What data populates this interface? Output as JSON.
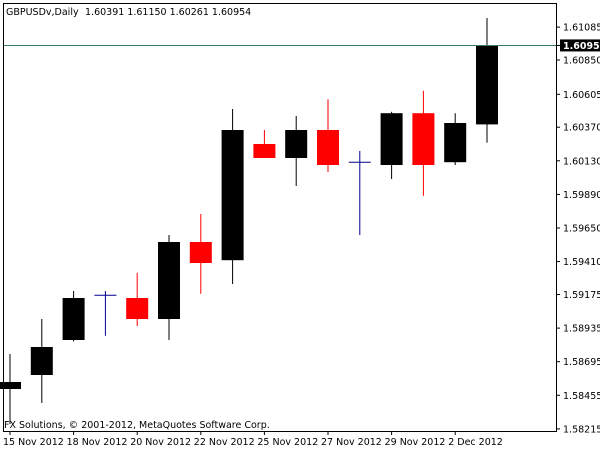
{
  "header": {
    "symbol_timeframe": "GBPUSDv,Daily",
    "ohlc": "1.60391 1.61150 1.60261 1.60954"
  },
  "footer": {
    "copyright": "FX Solutions, © 2001-2012, MetaQuotes Software Corp."
  },
  "chart_data": {
    "type": "candlestick",
    "symbol": "GBPUSDv",
    "timeframe": "Daily",
    "last_price": "1.60954",
    "ylim": [
      1.582,
      1.6125
    ],
    "y_ticks": [
      "1.61085",
      "1.60954",
      "1.60850",
      "1.60605",
      "1.60370",
      "1.60130",
      "1.59890",
      "1.59650",
      "1.59410",
      "1.59175",
      "1.58935",
      "1.58695",
      "1.58455",
      "1.58215"
    ],
    "x_tick_labels": [
      "15 Nov 2012",
      "18 Nov 2012",
      "20 Nov 2012",
      "22 Nov 2012",
      "25 Nov 2012",
      "27 Nov 2012",
      "29 Nov 2012",
      "2 Dec 2012"
    ],
    "colors": {
      "bull": "#000000",
      "bear": "#ff0000",
      "doji": "#00008b",
      "last_price_line": "#3a7a6e"
    },
    "candles": [
      {
        "open": 1.585,
        "high": 1.5875,
        "low": 1.5825,
        "close": 1.5855
      },
      {
        "open": 1.586,
        "high": 1.59,
        "low": 1.584,
        "close": 1.588
      },
      {
        "open": 1.5885,
        "high": 1.592,
        "low": 1.5884,
        "close": 1.5915
      },
      {
        "open": 1.5917,
        "high": 1.592,
        "low": 1.5888,
        "close": 1.5916
      },
      {
        "open": 1.5915,
        "high": 1.5933,
        "low": 1.5895,
        "close": 1.59
      },
      {
        "open": 1.59,
        "high": 1.596,
        "low": 1.5885,
        "close": 1.5955
      },
      {
        "open": 1.5955,
        "high": 1.5975,
        "low": 1.5918,
        "close": 1.594
      },
      {
        "open": 1.5942,
        "high": 1.605,
        "low": 1.5925,
        "close": 1.6035
      },
      {
        "open": 1.6025,
        "high": 1.6035,
        "low": 1.6015,
        "close": 1.6015
      },
      {
        "open": 1.6015,
        "high": 1.6045,
        "low": 1.5995,
        "close": 1.6035
      },
      {
        "open": 1.6035,
        "high": 1.6057,
        "low": 1.6005,
        "close": 1.601
      },
      {
        "open": 1.6012,
        "high": 1.602,
        "low": 1.596,
        "close": 1.6013
      },
      {
        "open": 1.601,
        "high": 1.6048,
        "low": 1.6,
        "close": 1.6047
      },
      {
        "open": 1.6047,
        "high": 1.6063,
        "low": 1.5988,
        "close": 1.601
      },
      {
        "open": 1.6012,
        "high": 1.6047,
        "low": 1.601,
        "close": 1.604
      },
      {
        "open": 1.6039,
        "high": 1.6115,
        "low": 1.6026,
        "close": 1.6095
      }
    ]
  }
}
